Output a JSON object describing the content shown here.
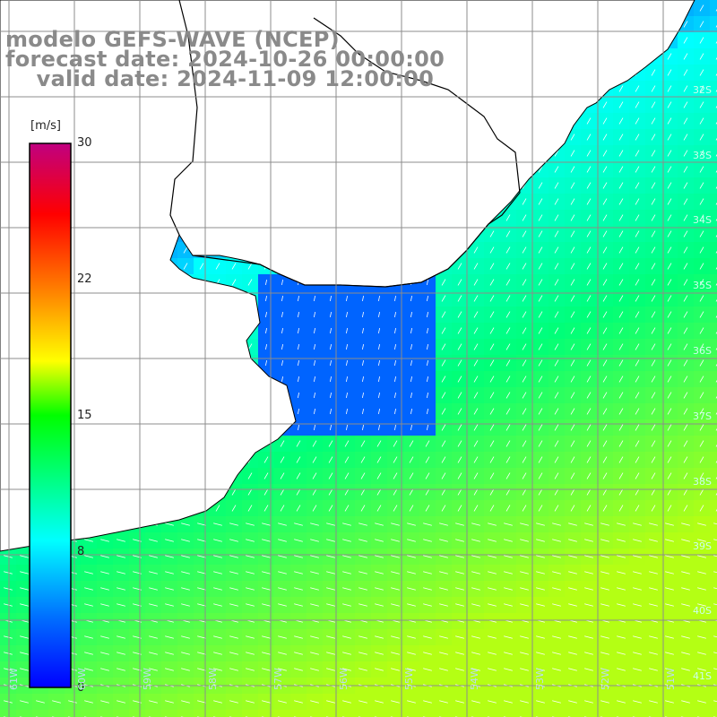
{
  "title": {
    "model": "modelo GEFS-WAVE (NCEP)",
    "forecast": "forecast date: 2024-10-26 00:00:00",
    "valid": "    valid date: 2024-11-09 12:00:00"
  },
  "colorbar": {
    "unit": "[m/s]",
    "min": 0,
    "max": 30,
    "ticks": [
      "30",
      "22",
      "15",
      "8",
      "0"
    ],
    "tick_values": [
      30,
      22,
      15,
      8,
      0
    ],
    "colors": [
      "#0000ff",
      "#0080ff",
      "#00ffff",
      "#00ff00",
      "#ffff00",
      "#ff8000",
      "#ff0000",
      "#c00080"
    ]
  },
  "lat_labels": [
    "32S",
    "33S",
    "34S",
    "35S",
    "36S",
    "37S",
    "38S",
    "39S",
    "40S",
    "41S"
  ],
  "lon_labels": [
    "61W",
    "60W",
    "59W",
    "58W",
    "57W",
    "56W",
    "55W",
    "54W",
    "53W",
    "52W",
    "51W"
  ],
  "colors": {
    "land": "#ffffff",
    "coast": "#000000",
    "grid": "#8c8c8c",
    "arrow": "#ffffff"
  }
}
